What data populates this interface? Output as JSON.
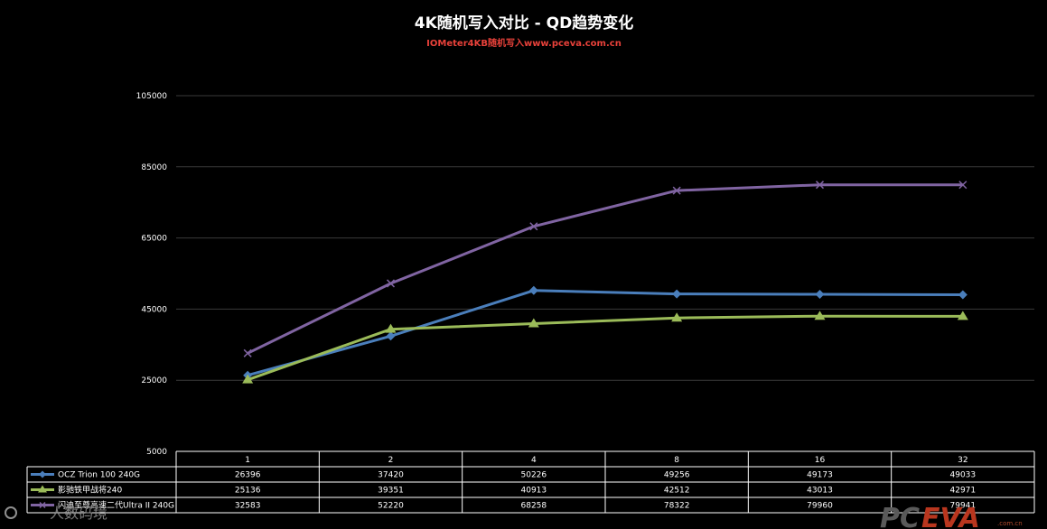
{
  "chart_data": {
    "type": "line",
    "title": "4K随机写入对比 - QD趋势变化",
    "subtitle": "IOMeter4KB随机写入www.pceva.com.cn",
    "categories": [
      "1",
      "2",
      "4",
      "8",
      "16",
      "32"
    ],
    "ylim": [
      5000,
      105000
    ],
    "yticks": [
      "5000",
      "25000",
      "45000",
      "65000",
      "85000",
      "105000"
    ],
    "grid": true,
    "legend_placement": "data-table-left",
    "series": [
      {
        "name": "OCZ Trion 100 240G",
        "values": [
          26396,
          37420,
          50226,
          49256,
          49173,
          49033
        ],
        "color": "#4a7ebb",
        "marker": "diamond"
      },
      {
        "name": "影驰铁甲战将240",
        "values": [
          25136,
          39351,
          40913,
          42512,
          43013,
          42971
        ],
        "color": "#9bbb59",
        "marker": "triangle"
      },
      {
        "name": "闪迪至尊高速二代Ultra II 240G",
        "values": [
          32583,
          52220,
          68258,
          78322,
          79960,
          79941
        ],
        "color": "#8064a2",
        "marker": "x"
      }
    ]
  },
  "watermark": {
    "left_text": "人数码境",
    "brand_left": "PC",
    "brand_right": "EVA",
    "brand_small": ".com.cn"
  }
}
